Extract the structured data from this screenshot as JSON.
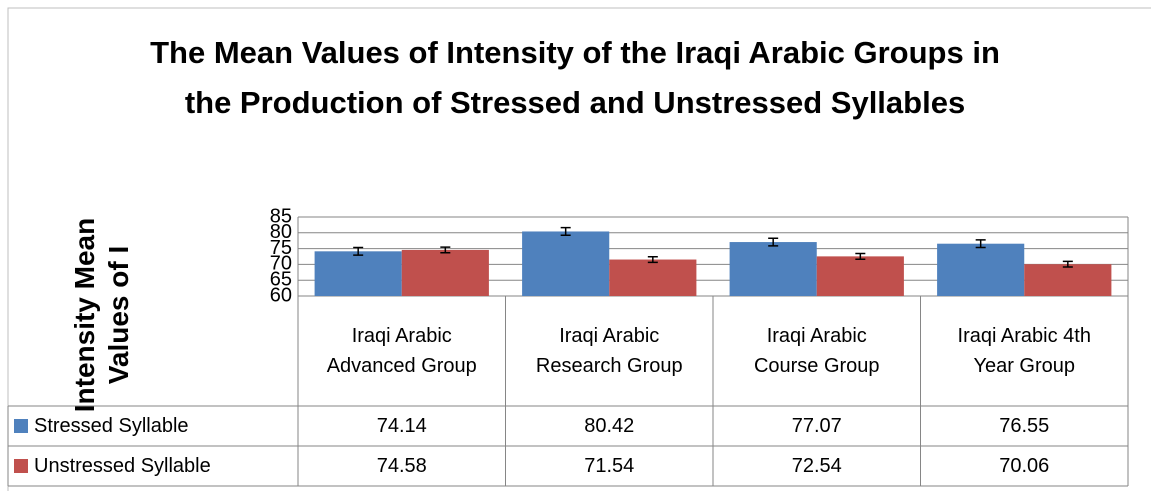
{
  "chart_data": {
    "type": "bar",
    "title": "The Mean Values of Intensity of the Iraqi Arabic Groups in the Production of Stressed and Unstressed Syllables",
    "y_label": "Intensity Mean Values of I",
    "categories": [
      "Iraqi Arabic Advanced Group",
      "Iraqi Arabic Research Group",
      "Iraqi Arabic Course Group",
      "Iraqi Arabic 4th Year Group"
    ],
    "series": [
      {
        "name": "Stressed Syllable",
        "color": "#4f81bd",
        "values": [
          74.14,
          80.42,
          77.07,
          76.55
        ],
        "errors": [
          1.2,
          1.2,
          1.2,
          1.2
        ]
      },
      {
        "name": "Unstressed Syllable",
        "color": "#c0504d",
        "values": [
          74.58,
          71.54,
          72.54,
          70.06
        ],
        "errors": [
          0.9,
          0.9,
          0.9,
          0.9
        ]
      }
    ],
    "ylim": [
      60,
      85
    ],
    "yticks": [
      60,
      65,
      70,
      75,
      80,
      85
    ],
    "grid": true
  }
}
